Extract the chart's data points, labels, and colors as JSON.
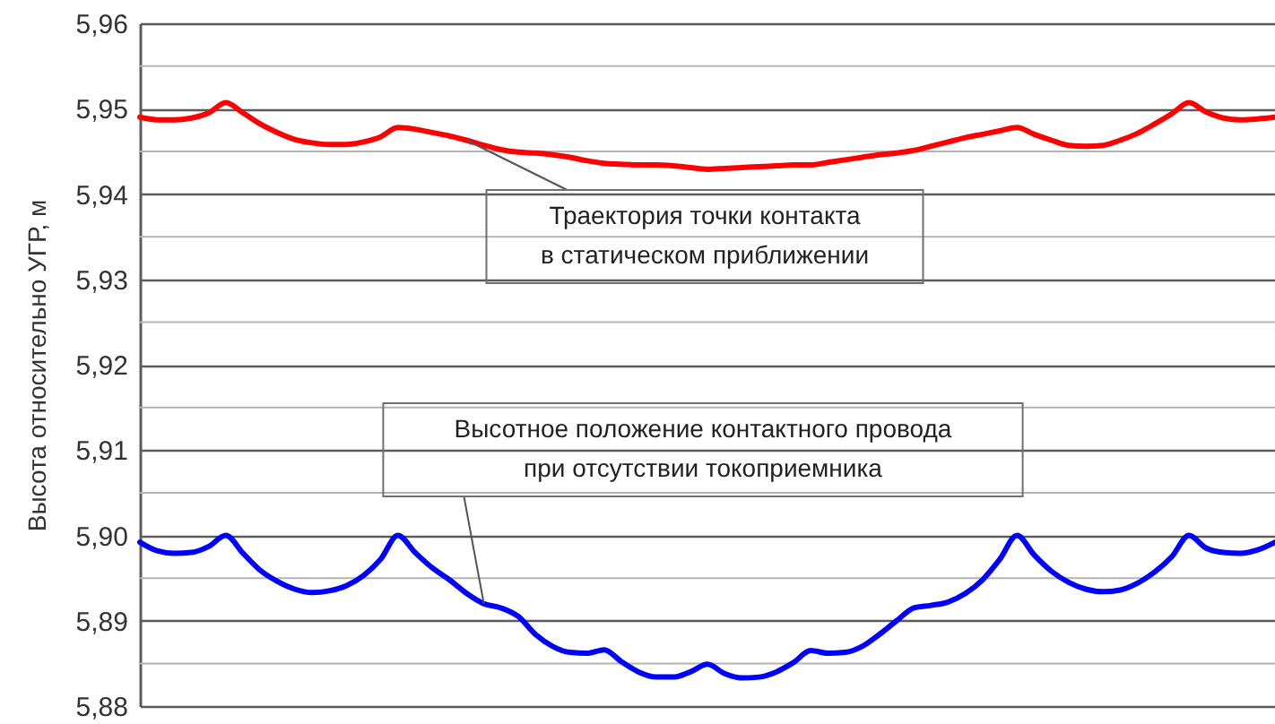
{
  "chart_data": {
    "type": "line",
    "ylabel": "Высота относительно УГР, м",
    "categories": [
      null,
      null,
      null,
      null,
      null,
      null,
      null,
      null,
      null,
      null,
      null,
      null,
      null,
      null,
      null,
      null,
      null,
      null,
      null,
      null,
      null,
      null,
      null,
      null,
      null,
      null,
      null,
      null,
      null,
      null,
      null,
      null,
      null,
      null,
      null,
      null,
      null,
      null,
      null,
      null,
      null,
      null,
      null,
      null,
      null,
      null,
      null,
      null,
      null,
      null,
      null,
      null,
      null,
      null,
      null,
      null,
      null,
      null,
      null,
      null,
      null,
      null,
      null,
      null,
      null,
      null,
      null
    ],
    "series": [
      {
        "name": "Траектория точки контакта\nв статическом приближении",
        "color": "#ff0000",
        "values": [
          5.949,
          5.9487,
          5.9487,
          5.9489,
          5.9495,
          5.9507,
          5.9495,
          5.9482,
          5.9472,
          5.9464,
          5.946,
          5.9458,
          5.9458,
          5.9461,
          5.9467,
          5.9478,
          5.9476,
          5.9472,
          5.9468,
          5.9463,
          5.9457,
          5.9452,
          5.9449,
          5.9448,
          5.9446,
          5.9443,
          5.9439,
          5.9436,
          5.9435,
          5.9434,
          5.9434,
          5.9433,
          5.9431,
          5.9429,
          5.943,
          5.9431,
          5.9432,
          5.9433,
          5.9434,
          5.9434,
          5.9437,
          5.944,
          5.9443,
          5.9446,
          5.9448,
          5.9451,
          5.9456,
          5.9461,
          5.9466,
          5.947,
          5.9474,
          5.9478,
          5.947,
          5.9463,
          5.9457,
          5.9456,
          5.9457,
          5.9463,
          5.9471,
          5.9482,
          5.9494,
          5.9507,
          5.9496,
          5.9489,
          5.9487,
          5.9488,
          5.949
        ]
      },
      {
        "name": "Высотное положение контактного провода\nпри отсутствии токоприемника",
        "color": "#0000ff",
        "values": [
          5.8992,
          5.8982,
          5.8979,
          5.898,
          5.8987,
          5.9,
          5.8979,
          5.8959,
          5.8946,
          5.8937,
          5.8933,
          5.8935,
          5.8941,
          5.8953,
          5.8972,
          5.9,
          5.898,
          5.8962,
          5.8948,
          5.8932,
          5.892,
          5.8915,
          5.8905,
          5.8884,
          5.887,
          5.8863,
          5.8862,
          5.8866,
          5.8852,
          5.884,
          5.8834,
          5.8834,
          5.884,
          5.8849,
          5.8838,
          5.8833,
          5.8834,
          5.884,
          5.8851,
          5.8865,
          5.8862,
          5.8863,
          5.887,
          5.8884,
          5.89,
          5.8915,
          5.8918,
          5.8922,
          5.8932,
          5.8948,
          5.8972,
          5.9,
          5.8977,
          5.8958,
          5.8945,
          5.8937,
          5.8934,
          5.8936,
          5.8944,
          5.8957,
          5.8975,
          5.9,
          5.8985,
          5.898,
          5.8979,
          5.8983,
          5.8992
        ]
      }
    ],
    "ylim": [
      5.88,
      5.96
    ],
    "yticks": [
      {
        "value": 5.88,
        "label": "5,88"
      },
      {
        "value": 5.885,
        "label": null
      },
      {
        "value": 5.89,
        "label": "5,89"
      },
      {
        "value": 5.895,
        "label": null
      },
      {
        "value": 5.9,
        "label": "5,90"
      },
      {
        "value": 5.905,
        "label": null
      },
      {
        "value": 5.91,
        "label": "5,91"
      },
      {
        "value": 5.915,
        "label": null
      },
      {
        "value": 5.92,
        "label": "5,92"
      },
      {
        "value": 5.925,
        "label": null
      },
      {
        "value": 5.93,
        "label": "5,93"
      },
      {
        "value": 5.935,
        "label": null
      },
      {
        "value": 5.94,
        "label": "5,94"
      },
      {
        "value": 5.945,
        "label": null
      },
      {
        "value": 5.95,
        "label": "5,95"
      },
      {
        "value": 5.955,
        "label": null
      },
      {
        "value": 5.96,
        "label": "5,96"
      }
    ],
    "grid": "y"
  }
}
